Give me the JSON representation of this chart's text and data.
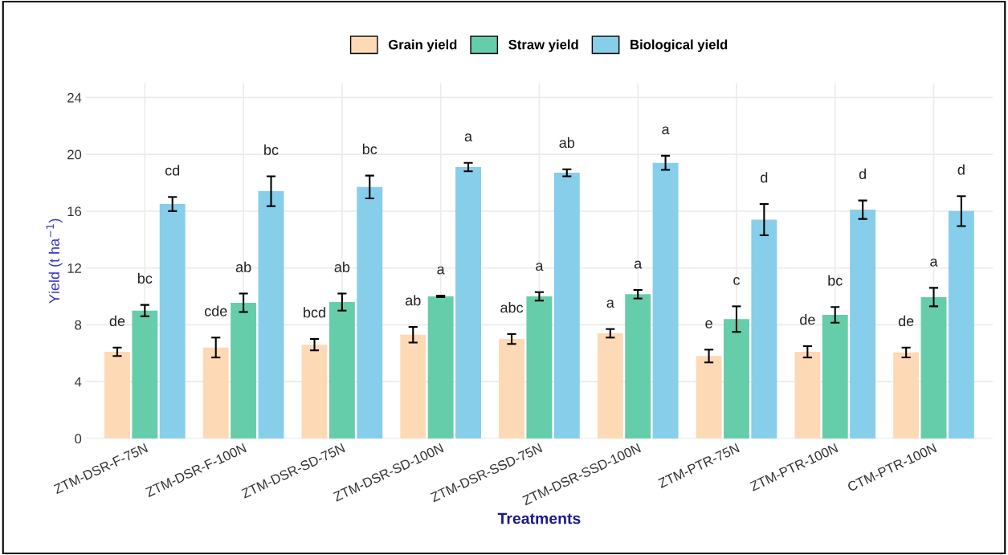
{
  "chart_data": {
    "type": "bar",
    "xlabel": "Treatments",
    "ylabel": "Yield (t ha$^{−1}$)",
    "categories": [
      "ZTM-DSR-F-75N",
      "ZTM-DSR-F-100N",
      "ZTM-DSR-SD-75N",
      "ZTM-DSR-SD-100N",
      "ZTM-DSR-SSD-75N",
      "ZTM-DSR-SSD-100N",
      "ZTM-PTR-75N",
      "ZTM-PTR-100N",
      "CTM-PTR-100N"
    ],
    "series": [
      {
        "name": "Grain yield",
        "color": "#fdd9b5",
        "values": [
          6.1,
          6.4,
          6.6,
          7.3,
          7.0,
          7.4,
          5.8,
          6.1,
          6.05
        ],
        "errors": [
          0.3,
          0.7,
          0.4,
          0.55,
          0.35,
          0.3,
          0.45,
          0.4,
          0.35
        ],
        "value_labels": [
          "de",
          "cde",
          "bcd",
          "ab",
          "abc",
          "a",
          "e",
          "de",
          "de"
        ]
      },
      {
        "name": "Straw yield",
        "color": "#66cdaa",
        "values": [
          9.0,
          9.55,
          9.6,
          10.0,
          10.0,
          10.15,
          8.4,
          8.7,
          9.95
        ],
        "errors": [
          0.4,
          0.65,
          0.6,
          0.05,
          0.3,
          0.3,
          0.9,
          0.55,
          0.65
        ],
        "value_labels": [
          "bc",
          "ab",
          "ab",
          "a",
          "a",
          "a",
          "c",
          "bc",
          "a"
        ]
      },
      {
        "name": "Biological yield",
        "color": "#87ceeb",
        "values": [
          16.5,
          17.4,
          17.7,
          19.1,
          18.7,
          19.4,
          15.4,
          16.1,
          16.0
        ],
        "errors": [
          0.5,
          1.05,
          0.8,
          0.3,
          0.25,
          0.5,
          1.1,
          0.65,
          1.05
        ],
        "value_labels": [
          "cd",
          "bc",
          "bc",
          "a",
          "ab",
          "a",
          "d",
          "d",
          "d"
        ]
      }
    ],
    "ylim": [
      0,
      25
    ],
    "yticks": [
      0,
      4,
      8,
      12,
      16,
      20,
      24
    ],
    "grid": true,
    "legend": "top"
  }
}
